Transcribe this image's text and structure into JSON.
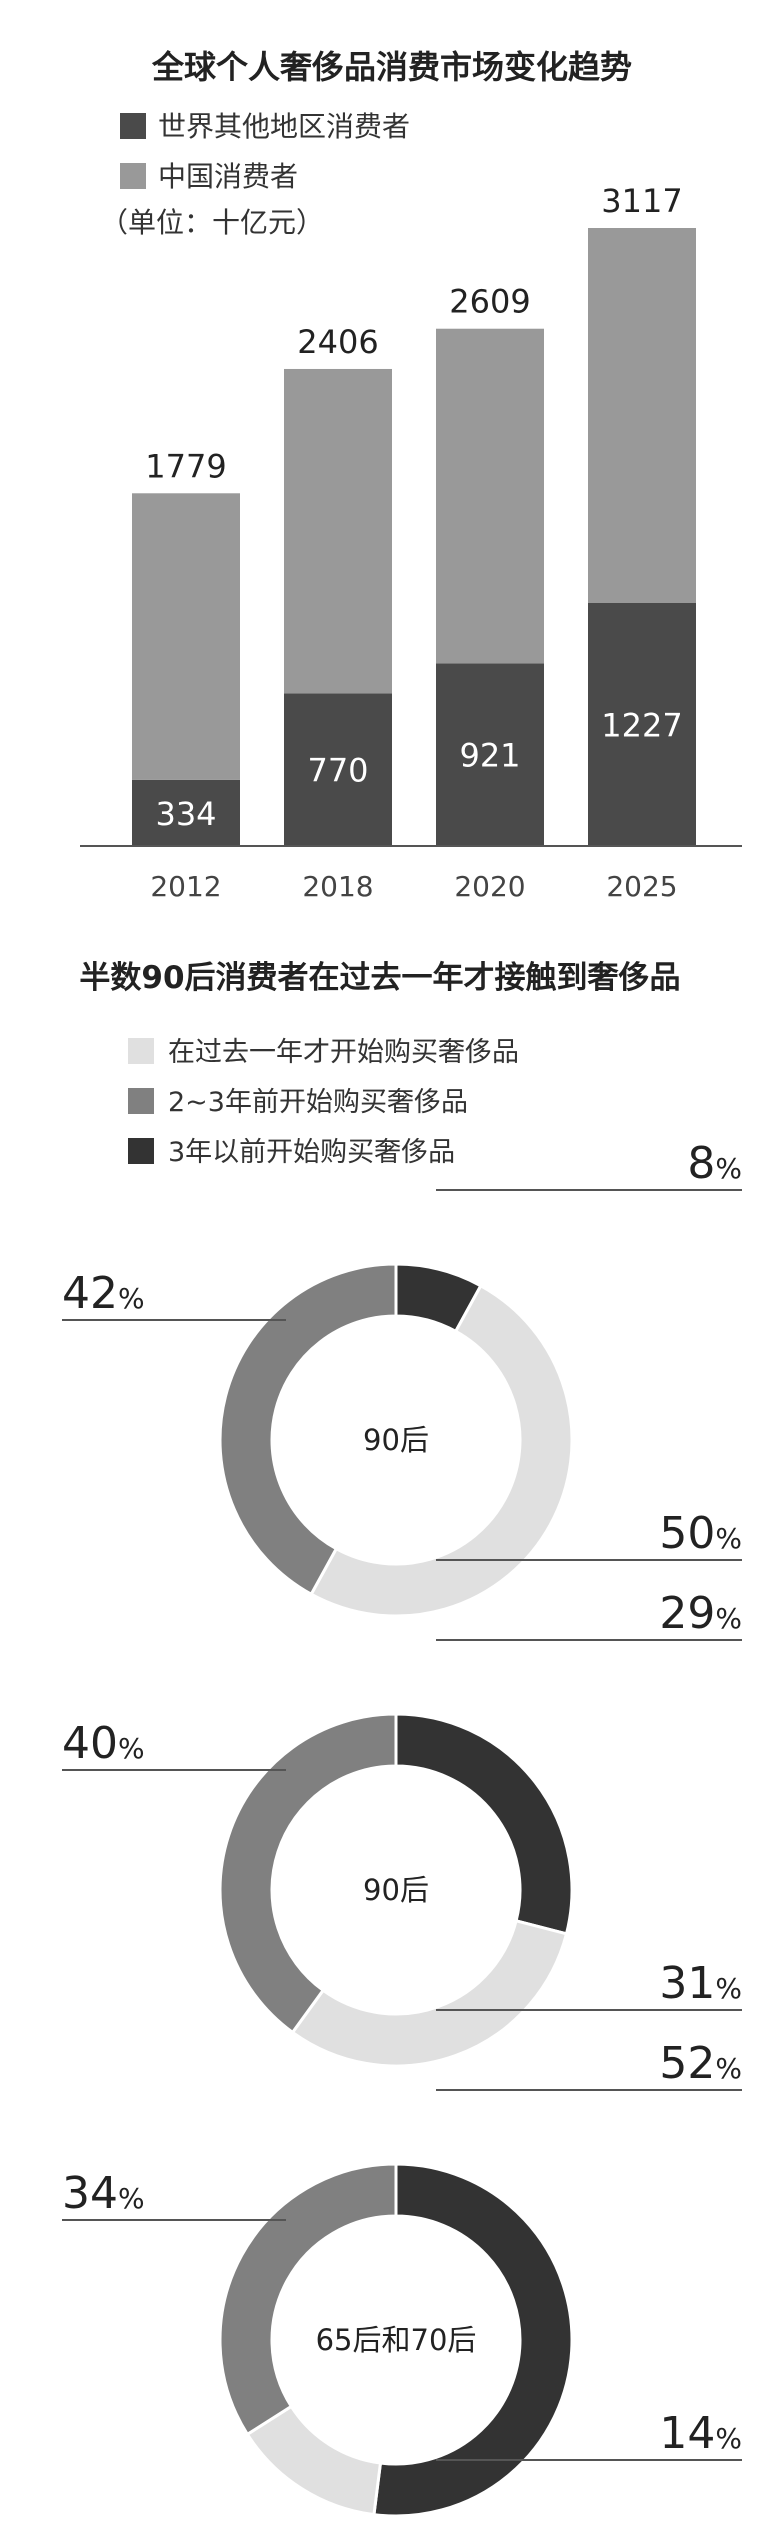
{
  "chart_data": [
    {
      "type": "bar",
      "title": "全球个人奢侈品消费市场变化趋势",
      "unit_note": "（单位：十亿元）",
      "categories": [
        "2012",
        "2018",
        "2020",
        "2025"
      ],
      "totals": [
        1779,
        2406,
        2609,
        3117
      ],
      "series": [
        {
          "name": "世界其他地区消费者",
          "values": [
            334,
            770,
            921,
            1227
          ],
          "color": "#4a4a4a"
        },
        {
          "name": "中国消费者",
          "values": [
            1445,
            1636,
            1688,
            1890
          ],
          "color": "#999999"
        }
      ],
      "ylim": [
        0,
        3117
      ]
    },
    {
      "type": "pie",
      "title": "半数90后消费者在过去一年才接触到奢侈品",
      "legend": [
        {
          "label": "在过去一年才开始购买奢侈品",
          "color": "#e0e0e0"
        },
        {
          "label": "2~3年前开始购买奢侈品",
          "color": "#808080"
        },
        {
          "label": "3年以前开始购买奢侈品",
          "color": "#333333"
        }
      ],
      "donuts": [
        {
          "center_label": "90后",
          "slices": [
            {
              "name": "3年以前开始购买奢侈品",
              "value": 8,
              "num": "8",
              "color": "#333333"
            },
            {
              "name": "在过去一年才开始购买奢侈品",
              "value": 50,
              "num": "50",
              "color": "#e0e0e0"
            },
            {
              "name": "2~3年前开始购买奢侈品",
              "value": 42,
              "num": "42",
              "color": "#808080"
            }
          ]
        },
        {
          "center_label": "90后",
          "slices": [
            {
              "name": "3年以前开始购买奢侈品",
              "value": 29,
              "num": "29",
              "color": "#333333"
            },
            {
              "name": "在过去一年才开始购买奢侈品",
              "value": 31,
              "num": "31",
              "color": "#e0e0e0"
            },
            {
              "name": "2~3年前开始购买奢侈品",
              "value": 40,
              "num": "40",
              "color": "#808080"
            }
          ]
        },
        {
          "center_label": "65后和70后",
          "slices": [
            {
              "name": "3年以前开始购买奢侈品",
              "value": 52,
              "num": "52",
              "color": "#333333"
            },
            {
              "name": "在过去一年才开始购买奢侈品",
              "value": 14,
              "num": "14",
              "color": "#e0e0e0"
            },
            {
              "name": "2~3年前开始购买奢侈品",
              "value": 34,
              "num": "34",
              "color": "#808080"
            }
          ]
        }
      ],
      "percent_sign": "%"
    }
  ]
}
